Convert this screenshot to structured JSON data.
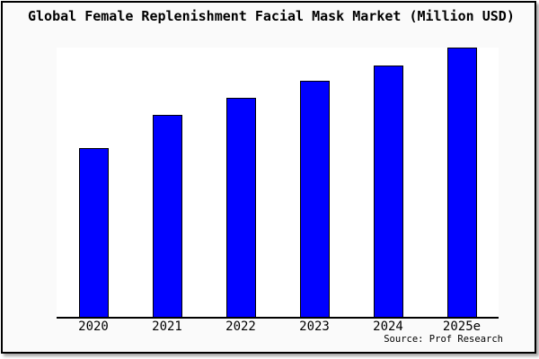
{
  "title": "Global Female Replenishment Facial Mask Market (Million USD)",
  "source_note": "Source: Prof Research",
  "chart_data": {
    "type": "bar",
    "title": "Global Female Replenishment Facial Mask Market (Million USD)",
    "categories": [
      "2020",
      "2021",
      "2022",
      "2023",
      "2024",
      "2025e"
    ],
    "values": [
      188,
      225,
      244,
      263,
      280,
      300
    ],
    "values_note": "relative bar heights in pixels; chart displays no y-axis, tick values or data labels",
    "xlabel": "",
    "ylabel": "",
    "ylim": [
      0,
      300
    ],
    "grid": false,
    "legend": "none",
    "y_axis_visible": false,
    "bar_color": "#0000ff",
    "bar_border_color": "#000000",
    "axis_color": "#000000",
    "plot_background": "#ffffff",
    "outer_background": "#fafafa",
    "frame_border_color": "#000000",
    "annotations": [
      "Source: Prof Research"
    ]
  }
}
